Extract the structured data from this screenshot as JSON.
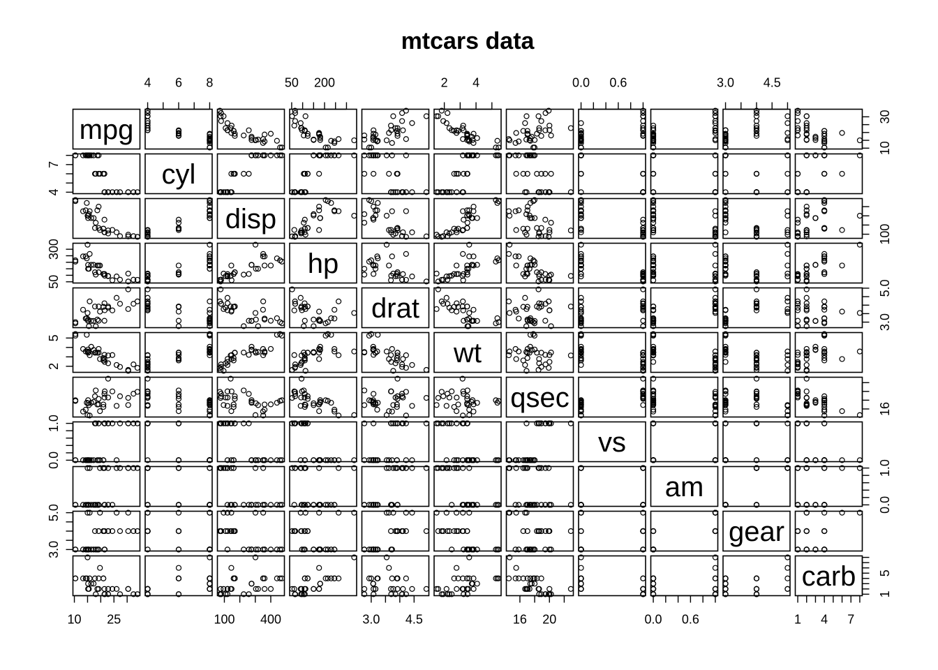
{
  "chart_data": {
    "type": "scatter",
    "title": "mtcars data",
    "variables": [
      {
        "name": "mpg",
        "label": "mpg",
        "range": [
          10.4,
          33.9
        ],
        "ticks": [
          10,
          25
        ],
        "tick_labels": [
          "10",
          "25"
        ],
        "minor_ticks": [
          15,
          20,
          30
        ],
        "axis_side": "bottom"
      },
      {
        "name": "cyl",
        "label": "cyl",
        "range": [
          4,
          8
        ],
        "ticks": [
          4,
          7
        ],
        "tick_labels": [
          "4",
          "7"
        ],
        "minor_ticks": [
          5,
          6,
          8
        ],
        "axis_side": "left"
      },
      {
        "name": "disp",
        "label": "disp",
        "range": [
          71.1,
          472
        ],
        "ticks": [
          100,
          400
        ],
        "tick_labels": [
          "100",
          "400"
        ],
        "minor_ticks": [
          200,
          300
        ],
        "axis_side": "bottom"
      },
      {
        "name": "hp",
        "label": "hp",
        "range": [
          52,
          335
        ],
        "ticks": [
          50,
          300
        ],
        "tick_labels": [
          "50",
          "300"
        ],
        "minor_ticks": [
          100,
          150,
          200,
          250
        ],
        "axis_side": "left"
      },
      {
        "name": "drat",
        "label": "drat",
        "range": [
          2.76,
          4.93
        ],
        "ticks": [
          3.0,
          4.5
        ],
        "tick_labels": [
          "3.0",
          "4.5"
        ],
        "minor_ticks": [
          3.5,
          4.0
        ],
        "axis_side": "bottom"
      },
      {
        "name": "wt",
        "label": "wt",
        "range": [
          1.513,
          5.424
        ],
        "ticks": [
          2,
          5
        ],
        "tick_labels": [
          "2",
          "5"
        ],
        "minor_ticks": [
          3,
          4
        ],
        "axis_side": "left"
      },
      {
        "name": "qsec",
        "label": "qsec",
        "range": [
          14.5,
          22.9
        ],
        "ticks": [
          16,
          20
        ],
        "tick_labels": [
          "16",
          "20"
        ],
        "minor_ticks": [
          18,
          22
        ],
        "axis_side": "bottom"
      },
      {
        "name": "vs",
        "label": "vs",
        "range": [
          0,
          1
        ],
        "ticks": [
          0.0,
          1.0
        ],
        "tick_labels": [
          "0.0",
          "1.0"
        ],
        "minor_ticks": [
          0.2,
          0.4,
          0.6,
          0.8
        ],
        "axis_side": "left"
      },
      {
        "name": "am",
        "label": "am",
        "range": [
          0,
          1
        ],
        "ticks": [
          0.0,
          0.6
        ],
        "tick_labels": [
          "0.0",
          "0.6"
        ],
        "minor_ticks": [
          0.2,
          0.4,
          0.8,
          1.0
        ],
        "axis_side": "bottom"
      },
      {
        "name": "gear",
        "label": "gear",
        "range": [
          3,
          5
        ],
        "ticks": [
          3.0,
          5.0
        ],
        "tick_labels": [
          "3.0",
          "5.0"
        ],
        "minor_ticks": [
          3.5,
          4.0,
          4.5
        ],
        "axis_side": "left"
      },
      {
        "name": "carb",
        "label": "carb",
        "range": [
          1,
          8
        ],
        "ticks": [
          1,
          4,
          7
        ],
        "tick_labels": [
          "1",
          "4",
          "7"
        ],
        "minor_ticks": [
          2,
          3,
          5,
          6,
          8
        ],
        "axis_side": "bottom"
      }
    ],
    "top_axes": [
      {
        "var": "cyl",
        "ticks": [
          4,
          6,
          8
        ],
        "tick_labels": [
          "4",
          "6",
          "8"
        ],
        "minor_ticks": [
          5,
          7
        ]
      },
      {
        "var": "hp",
        "ticks": [
          50,
          200
        ],
        "tick_labels": [
          "50",
          "200"
        ],
        "minor_ticks": [
          100,
          150,
          250,
          300
        ]
      },
      {
        "var": "wt",
        "ticks": [
          2,
          4
        ],
        "tick_labels": [
          "2",
          "4"
        ],
        "minor_ticks": [
          3,
          5
        ]
      },
      {
        "var": "vs",
        "ticks": [
          0.0,
          0.6
        ],
        "tick_labels": [
          "0.0",
          "0.6"
        ],
        "minor_ticks": [
          0.2,
          0.4,
          0.8,
          1.0
        ]
      },
      {
        "var": "gear",
        "ticks": [
          3.0,
          4.5
        ],
        "tick_labels": [
          "3.0",
          "4.5"
        ],
        "minor_ticks": [
          3.5,
          4.0,
          5.0
        ]
      }
    ],
    "right_axes": [
      {
        "var": "mpg",
        "ticks": [
          10,
          30
        ],
        "tick_labels": [
          "10",
          "30"
        ],
        "minor_ticks": [
          15,
          20,
          25
        ]
      },
      {
        "var": "disp",
        "ticks": [
          100
        ],
        "tick_labels": [
          "100"
        ],
        "minor_ticks": [
          200,
          300,
          400
        ]
      },
      {
        "var": "drat",
        "ticks": [
          3.0,
          5.0
        ],
        "tick_labels": [
          "3.0",
          "5.0"
        ],
        "minor_ticks": [
          3.5,
          4.0,
          4.5
        ]
      },
      {
        "var": "qsec",
        "ticks": [
          16
        ],
        "tick_labels": [
          "16"
        ],
        "minor_ticks": [
          18,
          20,
          22
        ]
      },
      {
        "var": "am",
        "ticks": [
          0.0,
          1.0
        ],
        "tick_labels": [
          "0.0",
          "1.0"
        ],
        "minor_ticks": [
          0.2,
          0.4,
          0.6,
          0.8
        ]
      },
      {
        "var": "carb",
        "ticks": [
          1,
          5
        ],
        "tick_labels": [
          "1",
          "5"
        ],
        "minor_ticks": [
          2,
          3,
          4,
          6,
          7,
          8
        ]
      }
    ],
    "observations": [
      [
        21.0,
        6,
        160.0,
        110,
        3.9,
        2.62,
        16.46,
        0,
        1,
        4,
        4
      ],
      [
        21.0,
        6,
        160.0,
        110,
        3.9,
        2.875,
        17.02,
        0,
        1,
        4,
        4
      ],
      [
        22.8,
        4,
        108.0,
        93,
        3.85,
        2.32,
        18.61,
        1,
        1,
        4,
        1
      ],
      [
        21.4,
        6,
        258.0,
        110,
        3.08,
        3.215,
        19.44,
        1,
        0,
        3,
        1
      ],
      [
        18.7,
        8,
        360.0,
        175,
        3.15,
        3.44,
        17.02,
        0,
        0,
        3,
        2
      ],
      [
        18.1,
        6,
        225.0,
        105,
        2.76,
        3.46,
        20.22,
        1,
        0,
        3,
        1
      ],
      [
        14.3,
        8,
        360.0,
        245,
        3.21,
        3.57,
        15.84,
        0,
        0,
        3,
        4
      ],
      [
        24.4,
        4,
        146.7,
        62,
        3.69,
        3.19,
        20.0,
        1,
        0,
        4,
        2
      ],
      [
        22.8,
        4,
        140.8,
        95,
        3.92,
        3.15,
        22.9,
        1,
        0,
        4,
        2
      ],
      [
        19.2,
        6,
        167.6,
        123,
        3.92,
        3.44,
        18.3,
        1,
        0,
        4,
        4
      ],
      [
        17.8,
        6,
        167.6,
        123,
        3.92,
        3.44,
        18.9,
        1,
        0,
        4,
        4
      ],
      [
        16.4,
        8,
        275.8,
        180,
        3.07,
        4.07,
        17.4,
        0,
        0,
        3,
        3
      ],
      [
        17.3,
        8,
        275.8,
        180,
        3.07,
        3.73,
        17.6,
        0,
        0,
        3,
        3
      ],
      [
        15.2,
        8,
        275.8,
        180,
        3.07,
        3.78,
        18.0,
        0,
        0,
        3,
        3
      ],
      [
        10.4,
        8,
        472.0,
        205,
        2.93,
        5.25,
        17.98,
        0,
        0,
        3,
        4
      ],
      [
        10.4,
        8,
        460.0,
        215,
        3.0,
        5.424,
        17.82,
        0,
        0,
        3,
        4
      ],
      [
        14.7,
        8,
        440.0,
        230,
        3.23,
        5.345,
        17.42,
        0,
        0,
        3,
        4
      ],
      [
        32.4,
        4,
        78.7,
        66,
        4.08,
        2.2,
        19.47,
        1,
        1,
        4,
        1
      ],
      [
        30.4,
        4,
        75.7,
        52,
        4.93,
        1.615,
        18.52,
        1,
        1,
        4,
        2
      ],
      [
        33.9,
        4,
        71.1,
        65,
        4.22,
        1.835,
        19.9,
        1,
        1,
        4,
        1
      ],
      [
        21.5,
        4,
        120.1,
        97,
        3.7,
        2.465,
        20.01,
        1,
        0,
        3,
        1
      ],
      [
        15.5,
        8,
        318.0,
        150,
        2.76,
        3.52,
        16.87,
        0,
        0,
        3,
        2
      ],
      [
        15.2,
        8,
        304.0,
        150,
        3.15,
        3.435,
        17.3,
        0,
        0,
        3,
        2
      ],
      [
        13.3,
        8,
        350.0,
        245,
        3.73,
        3.84,
        15.41,
        0,
        0,
        3,
        4
      ],
      [
        19.2,
        8,
        400.0,
        175,
        3.08,
        3.845,
        17.05,
        0,
        0,
        3,
        2
      ],
      [
        27.3,
        4,
        79.0,
        66,
        4.08,
        1.935,
        18.9,
        1,
        1,
        4,
        1
      ],
      [
        26.0,
        4,
        120.3,
        91,
        4.43,
        2.14,
        16.7,
        0,
        1,
        5,
        2
      ],
      [
        30.4,
        4,
        95.1,
        113,
        3.77,
        1.513,
        16.9,
        1,
        1,
        5,
        2
      ],
      [
        15.8,
        8,
        351.0,
        264,
        4.22,
        3.17,
        14.5,
        0,
        1,
        5,
        4
      ],
      [
        19.7,
        6,
        145.0,
        175,
        3.62,
        2.77,
        15.5,
        0,
        1,
        5,
        6
      ],
      [
        15.0,
        8,
        301.0,
        335,
        3.54,
        3.57,
        14.6,
        0,
        1,
        5,
        8
      ],
      [
        21.4,
        4,
        121.0,
        109,
        4.11,
        2.78,
        18.6,
        1,
        1,
        4,
        2
      ]
    ]
  }
}
